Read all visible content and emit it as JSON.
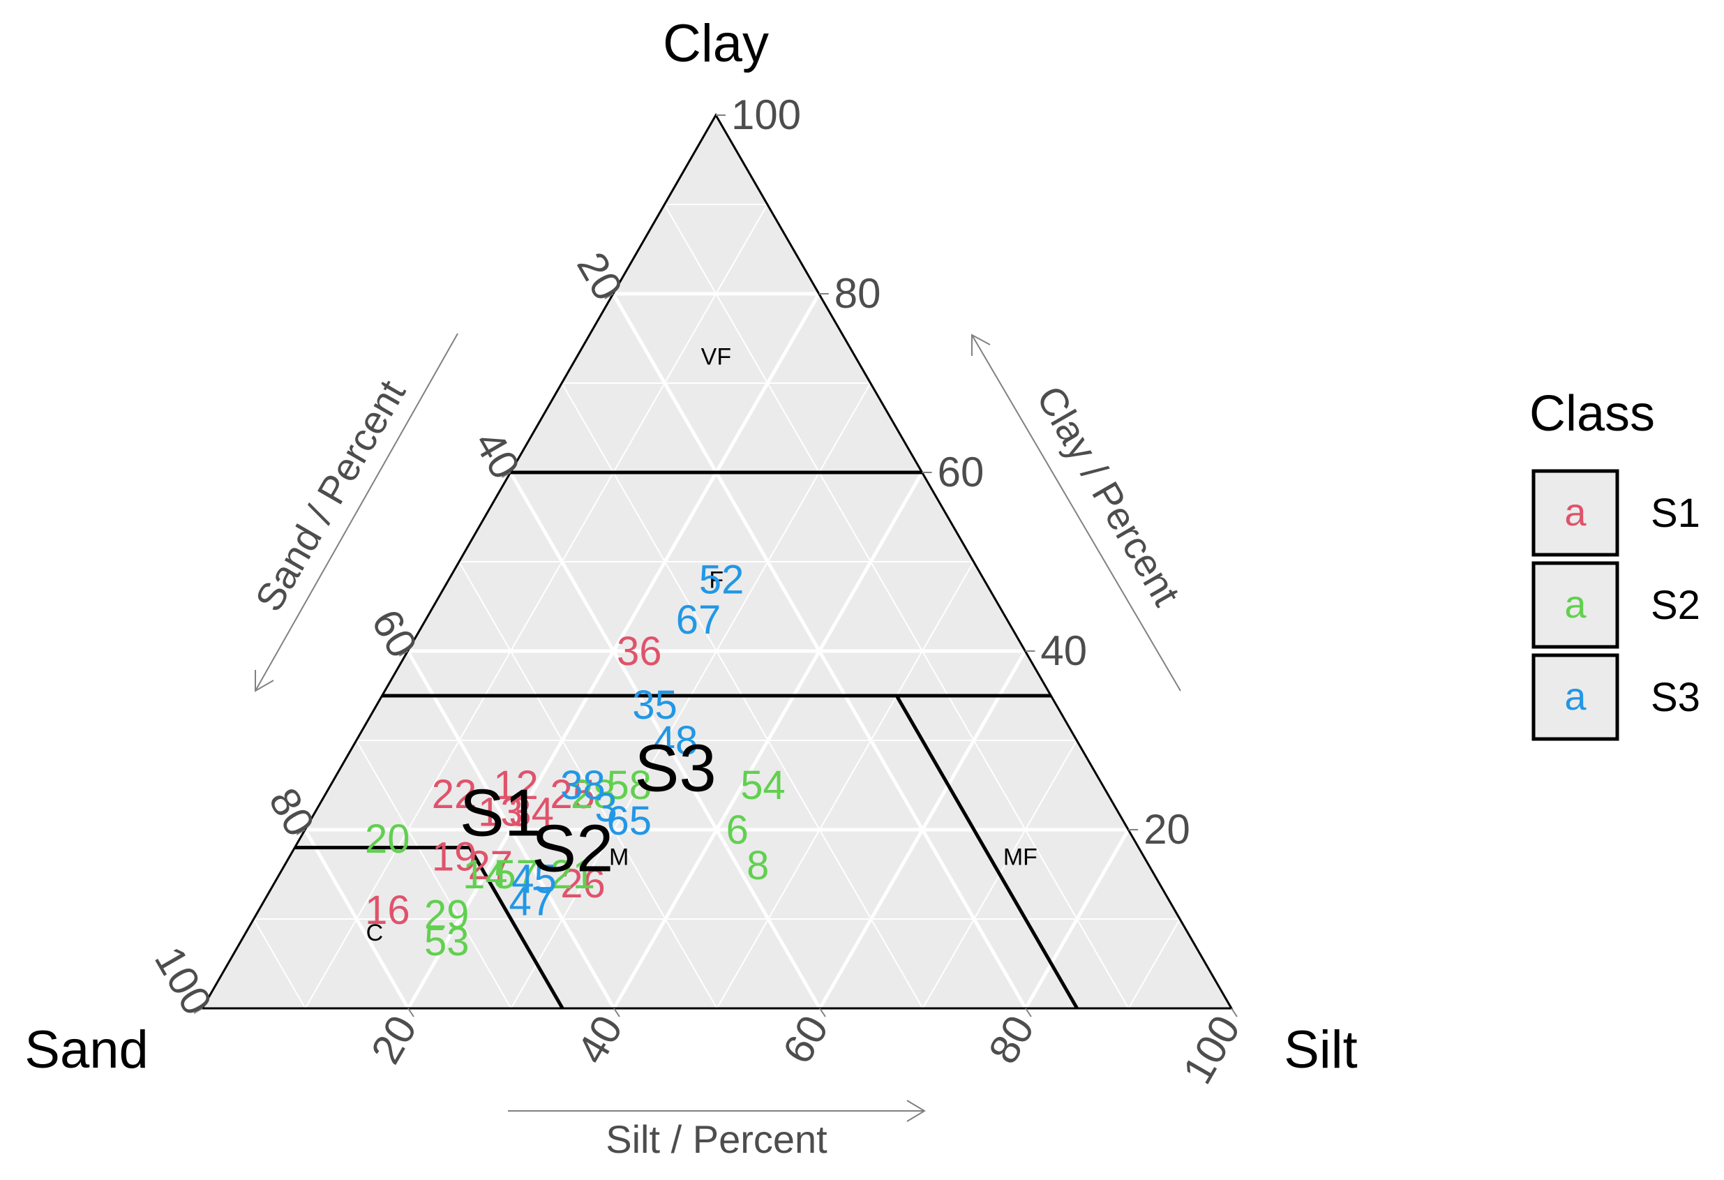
{
  "chart_data": {
    "type": "ternary",
    "vertices": {
      "top": "Clay",
      "left": "Sand",
      "right": "Silt"
    },
    "axis_titles": {
      "sand": "Sand / Percent",
      "clay": "Clay / Percent",
      "silt": "Silt / Percent"
    },
    "ticks": {
      "clay": [
        "20",
        "40",
        "60",
        "80",
        "100"
      ],
      "sand": [
        "20",
        "40",
        "60",
        "80",
        "100"
      ],
      "silt": [
        "20",
        "40",
        "60",
        "80",
        "100"
      ]
    },
    "grid": true,
    "boundaries": [
      {
        "from": {
          "clay": 60,
          "silt": 0
        },
        "to": {
          "clay": 60,
          "silt": 40
        }
      },
      {
        "from": {
          "clay": 35,
          "silt": 0
        },
        "to": {
          "clay": 35,
          "silt": 65
        }
      },
      {
        "from": {
          "clay": 18,
          "silt": 0
        },
        "to": {
          "clay": 18,
          "silt": 17
        }
      },
      {
        "from": {
          "clay": 18,
          "silt": 17
        },
        "to": {
          "clay": 0,
          "silt": 35
        }
      },
      {
        "from": {
          "clay": 35,
          "silt": 50
        },
        "to": {
          "clay": 0,
          "silt": 85
        }
      }
    ],
    "regions": [
      {
        "label": "VF",
        "clay": 73,
        "silt": 13.5
      },
      {
        "label": "F",
        "clay": 48,
        "silt": 26
      },
      {
        "label": "M",
        "clay": 17,
        "silt": 32
      },
      {
        "label": "MF",
        "clay": 17,
        "silt": 71
      },
      {
        "label": "C",
        "clay": 8.5,
        "silt": 12.5
      }
    ],
    "legend": {
      "title": "Class",
      "placement": "right",
      "key_glyph": "a",
      "entries": [
        {
          "name": "S1",
          "color": "#DF536B"
        },
        {
          "name": "S2",
          "color": "#61D04F"
        },
        {
          "name": "S3",
          "color": "#2297E6"
        }
      ]
    },
    "groups": [
      {
        "label": "S1",
        "clay": 22,
        "silt": 18
      },
      {
        "label": "S2",
        "clay": 18,
        "silt": 27
      },
      {
        "label": "S3",
        "clay": 27,
        "silt": 32.5
      }
    ],
    "points": [
      {
        "label": "36",
        "class": "S1",
        "clay": 40,
        "silt": 22.5
      },
      {
        "label": "22",
        "class": "S1",
        "clay": 24,
        "silt": 12.5
      },
      {
        "label": "12",
        "class": "S1",
        "clay": 25,
        "silt": 18
      },
      {
        "label": "13",
        "class": "S1",
        "clay": 22,
        "silt": 18
      },
      {
        "label": "34",
        "class": "S1",
        "clay": 22,
        "silt": 21
      },
      {
        "label": "25",
        "class": "S1",
        "clay": 24,
        "silt": 24
      },
      {
        "label": "19",
        "class": "S1",
        "clay": 17,
        "silt": 16
      },
      {
        "label": "27",
        "class": "S1",
        "clay": 16,
        "silt": 20
      },
      {
        "label": "16",
        "class": "S1",
        "clay": 11,
        "silt": 12.5
      },
      {
        "label": "26",
        "class": "S1",
        "clay": 14,
        "silt": 30
      },
      {
        "label": "20",
        "class": "S2",
        "clay": 19,
        "silt": 8.5
      },
      {
        "label": "14",
        "class": "S2",
        "clay": 15,
        "silt": 20
      },
      {
        "label": "57",
        "class": "S2",
        "clay": 15,
        "silt": 23
      },
      {
        "label": "58",
        "class": "S2",
        "clay": 25,
        "silt": 29
      },
      {
        "label": "28",
        "class": "S2",
        "clay": 24,
        "silt": 26
      },
      {
        "label": "54",
        "class": "S2",
        "clay": 25,
        "silt": 42
      },
      {
        "label": "6",
        "class": "S2",
        "clay": 20,
        "silt": 42
      },
      {
        "label": "8",
        "class": "S2",
        "clay": 16,
        "silt": 46
      },
      {
        "label": "29",
        "class": "S2",
        "clay": 10.5,
        "silt": 18.5
      },
      {
        "label": "53",
        "class": "S2",
        "clay": 7.5,
        "silt": 20
      },
      {
        "label": "21",
        "class": "S2",
        "clay": 15,
        "silt": 28.5
      },
      {
        "label": "52",
        "class": "S3",
        "clay": 48,
        "silt": 26.5
      },
      {
        "label": "67",
        "class": "S3",
        "clay": 43.5,
        "silt": 26.5
      },
      {
        "label": "35",
        "class": "S3",
        "clay": 34,
        "silt": 27
      },
      {
        "label": "48",
        "class": "S3",
        "clay": 30,
        "silt": 31
      },
      {
        "label": "38",
        "class": "S3",
        "clay": 25,
        "silt": 24.5
      },
      {
        "label": "3",
        "class": "S3",
        "clay": 22.5,
        "silt": 28
      },
      {
        "label": "65",
        "class": "S3",
        "clay": 21,
        "silt": 31
      },
      {
        "label": "45",
        "class": "S3",
        "clay": 14.5,
        "silt": 25
      },
      {
        "label": "47",
        "class": "S3",
        "clay": 12,
        "silt": 26
      }
    ]
  }
}
